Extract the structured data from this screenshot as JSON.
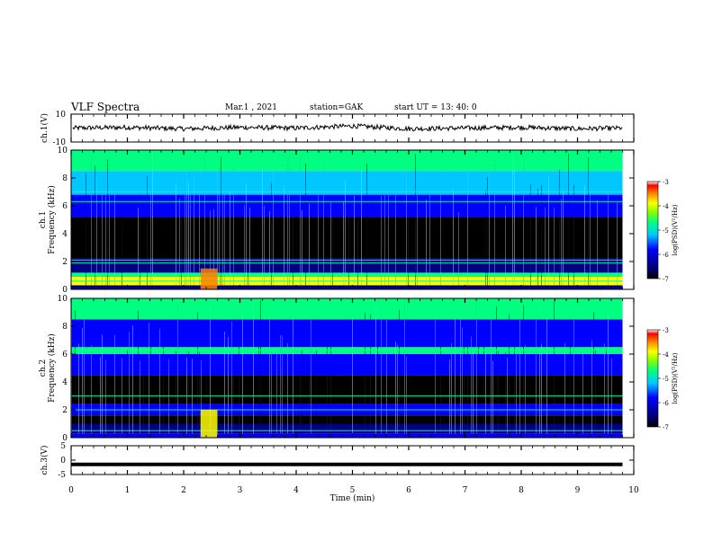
{
  "header": {
    "title": "VLF Spectra",
    "date": "Mar.1 , 2021",
    "station": "station=GAK",
    "start": "start UT = 13: 40: 0"
  },
  "colors": {
    "colormap": [
      "#ffffff",
      "#000000",
      "#000080",
      "#0000ff",
      "#00c8ff",
      "#00ff80",
      "#80ff00",
      "#ffff00",
      "#ff8000",
      "#ff0000"
    ],
    "trace": "#000000"
  },
  "chart_data": [
    {
      "type": "line",
      "panel": "ch1-waveform",
      "ylabel": "ch.1(V)",
      "ylim": [
        -10,
        10
      ],
      "yticks": [
        "10",
        "-10"
      ],
      "x": [
        0,
        1,
        2,
        3,
        4,
        5,
        6,
        7,
        8,
        9,
        9.8
      ],
      "values": [
        0,
        0.5,
        -0.5,
        0.5,
        0,
        1.5,
        -0.5,
        0,
        0.5,
        -0.5,
        0
      ]
    },
    {
      "type": "heatmap",
      "panel": "ch1-spectrogram",
      "ylabel": "ch.1 Frequency (kHz)",
      "ylim": [
        0,
        10
      ],
      "yticks": [
        "0",
        "2",
        "4",
        "6",
        "8",
        "10"
      ],
      "xlim": [
        0,
        10
      ],
      "x_extent": 9.8,
      "bands": [
        {
          "from": 0,
          "to": 0.3,
          "level": -6.5
        },
        {
          "from": 0.3,
          "to": 0.9,
          "level": -3.6
        },
        {
          "from": 0.9,
          "to": 1.2,
          "level": -5.0
        },
        {
          "from": 1.2,
          "to": 2.2,
          "level": -6.3
        },
        {
          "from": 2.2,
          "to": 5.2,
          "level": -6.9
        },
        {
          "from": 5.2,
          "to": 6.8,
          "level": -6.0
        },
        {
          "from": 6.8,
          "to": 8.5,
          "level": -5.2
        },
        {
          "from": 8.5,
          "to": 10,
          "level": -4.6
        }
      ],
      "lines": [
        0.6,
        1.1,
        1.9,
        2.1,
        6.3,
        7.0
      ],
      "burst": {
        "x": [
          2.3,
          2.6
        ],
        "f": [
          0,
          1.5
        ],
        "level": -3.3
      },
      "colorbar": {
        "label": "log(PSD)(V²/Hz)",
        "ticks": [
          "-3",
          "-4",
          "-5",
          "-6",
          "-7"
        ],
        "range": [
          -7,
          -3
        ]
      }
    },
    {
      "type": "heatmap",
      "panel": "ch2-spectrogram",
      "ylabel": "ch.2 Frequency (kHz)",
      "ylim": [
        0,
        10
      ],
      "yticks": [
        "0",
        "2",
        "4",
        "6",
        "8",
        "10"
      ],
      "xlim": [
        0,
        10
      ],
      "x_extent": 9.8,
      "bands": [
        {
          "from": 0,
          "to": 0.3,
          "level": -5.6
        },
        {
          "from": 0.3,
          "to": 1.0,
          "level": -6.2
        },
        {
          "from": 1.0,
          "to": 1.6,
          "level": -6.8
        },
        {
          "from": 1.6,
          "to": 2.4,
          "level": -6.0
        },
        {
          "from": 2.4,
          "to": 4.5,
          "level": -6.8
        },
        {
          "from": 4.5,
          "to": 6.0,
          "level": -5.9
        },
        {
          "from": 6.0,
          "to": 6.5,
          "level": -5.0
        },
        {
          "from": 6.5,
          "to": 8.5,
          "level": -5.7
        },
        {
          "from": 8.5,
          "to": 10,
          "level": -5.0
        }
      ],
      "lines": [
        0.5,
        2.0,
        3.0,
        6.3
      ],
      "burst": {
        "x": [
          2.3,
          2.6
        ],
        "f": [
          0,
          2.0
        ],
        "level": -4.0
      },
      "colorbar": {
        "label": "log(PSD)(V²/Hz)",
        "ticks": [
          "-3",
          "-4",
          "-5",
          "-6",
          "-7"
        ],
        "range": [
          -7,
          -3
        ]
      }
    },
    {
      "type": "line",
      "panel": "ch3-waveform",
      "ylabel": "ch.3(V)",
      "ylim": [
        -5,
        5
      ],
      "yticks": [
        "5",
        "0",
        "-5"
      ],
      "x": [
        0,
        9.8
      ],
      "values": [
        -1.5,
        -1.5
      ]
    },
    {
      "type": "axis",
      "panel": "time-axis",
      "xlabel": "Time (min)",
      "xlim": [
        0,
        10
      ],
      "xticks": [
        "0",
        "1",
        "2",
        "3",
        "4",
        "5",
        "6",
        "7",
        "8",
        "9",
        "10"
      ]
    }
  ]
}
